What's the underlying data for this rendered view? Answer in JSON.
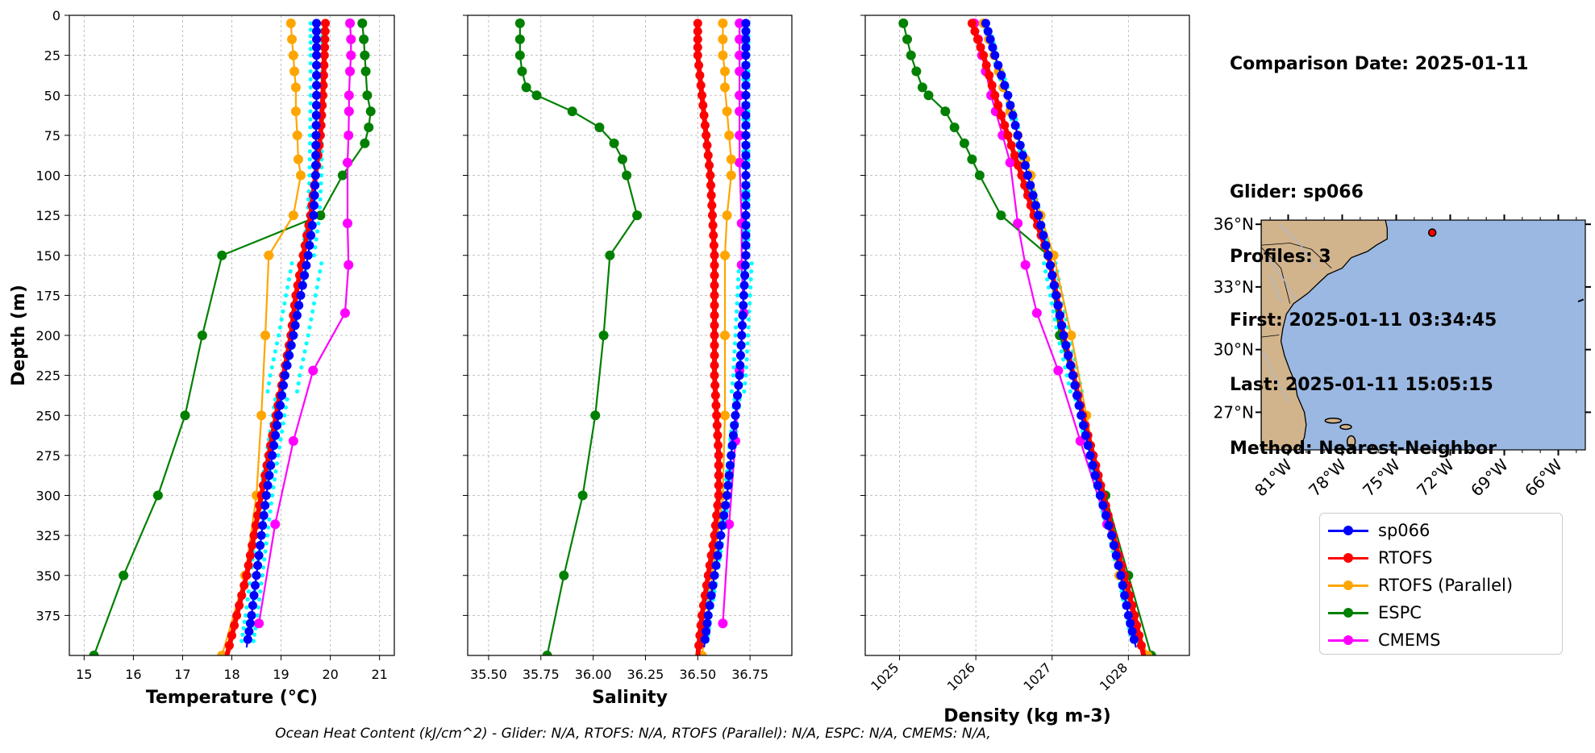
{
  "info": {
    "date_line": "Comparison Date: 2025-01-11",
    "glider_line": "Glider: sp066",
    "profiles_line": "Profiles: 3",
    "first_line": "First: 2025-01-11 03:34:45",
    "last_line": "Last: 2025-01-11 15:05:15",
    "method_line": "Method: Nearest-Neighbor"
  },
  "footer": "Ocean Heat Content (kJ/cm^2) - Glider: N/A,  RTOFS: N/A,  RTOFS (Parallel): N/A,  ESPC: N/A,  CMEMS: N/A,",
  "legend": [
    {
      "label": "sp066",
      "color": "#0000ff"
    },
    {
      "label": "RTOFS",
      "color": "#ff0000"
    },
    {
      "label": "RTOFS (Parallel)",
      "color": "#ffa500"
    },
    {
      "label": "ESPC",
      "color": "#008000"
    },
    {
      "label": "CMEMS",
      "color": "#ff00ff"
    }
  ],
  "colors": {
    "glider": "#0000ff",
    "rtofs": "#ff0000",
    "rtofs_parallel": "#ffa500",
    "espc": "#008000",
    "cmems": "#ff00ff",
    "glider_raw": "#00ffff",
    "land": "#d2b48c",
    "ocean": "#9ab8e2"
  },
  "chart_data": [
    {
      "type": "line",
      "xlabel": "Temperature (°C)",
      "ylabel": "Depth (m)",
      "xlim": [
        14.7,
        21.3
      ],
      "ylim": [
        400,
        0
      ],
      "xticks": [
        15,
        16,
        17,
        18,
        19,
        20,
        21
      ],
      "yticks": [
        0,
        25,
        50,
        75,
        100,
        125,
        150,
        175,
        200,
        225,
        250,
        275,
        300,
        325,
        350,
        375
      ],
      "grid": true,
      "series": [
        {
          "name": "sp066",
          "key": "glider",
          "depths": [
            5,
            25,
            50,
            75,
            100,
            125,
            150,
            175,
            200,
            225,
            250,
            275,
            300,
            325,
            350,
            375,
            395
          ],
          "values": [
            19.72,
            19.72,
            19.72,
            19.71,
            19.7,
            19.66,
            19.55,
            19.4,
            19.25,
            19.08,
            18.95,
            18.82,
            18.7,
            18.6,
            18.5,
            18.4,
            18.3
          ]
        },
        {
          "name": "RTOFS",
          "key": "rtofs",
          "depths": [
            5,
            25,
            50,
            75,
            100,
            125,
            150,
            175,
            200,
            225,
            250,
            275,
            300,
            325,
            350,
            375,
            400
          ],
          "values": [
            19.9,
            19.88,
            19.85,
            19.8,
            19.7,
            19.6,
            19.45,
            19.3,
            19.2,
            19.05,
            18.9,
            18.75,
            18.6,
            18.45,
            18.3,
            18.1,
            17.9
          ]
        },
        {
          "name": "RTOFS (Parallel)",
          "key": "rtofs_parallel",
          "depths": [
            5,
            15,
            25,
            35,
            45,
            60,
            75,
            90,
            100,
            125,
            150,
            200,
            250,
            300,
            350,
            400
          ],
          "values": [
            19.2,
            19.22,
            19.25,
            19.27,
            19.3,
            19.3,
            19.33,
            19.35,
            19.4,
            19.25,
            18.75,
            18.68,
            18.6,
            18.5,
            18.27,
            17.8
          ]
        },
        {
          "name": "ESPC",
          "key": "espc",
          "depths": [
            5,
            15,
            25,
            35,
            50,
            60,
            70,
            80,
            100,
            125,
            150,
            200,
            250,
            300,
            350,
            400
          ],
          "values": [
            20.65,
            20.68,
            20.7,
            20.72,
            20.75,
            20.82,
            20.78,
            20.7,
            20.25,
            19.8,
            17.8,
            17.4,
            17.05,
            16.5,
            15.8,
            15.2
          ]
        },
        {
          "name": "CMEMS",
          "key": "cmems",
          "depths": [
            5,
            15,
            25,
            35,
            50,
            60,
            75,
            92,
            130,
            156,
            186,
            222,
            266,
            318,
            380
          ],
          "values": [
            20.4,
            20.42,
            20.42,
            20.4,
            20.38,
            20.38,
            20.37,
            20.35,
            20.35,
            20.37,
            20.3,
            19.65,
            19.25,
            18.88,
            18.55
          ]
        }
      ]
    },
    {
      "type": "line",
      "xlabel": "Salinity",
      "ylim": [
        400,
        0
      ],
      "xlim": [
        35.4,
        36.95
      ],
      "xticks": [
        35.5,
        35.75,
        36.0,
        36.25,
        36.5,
        36.75
      ],
      "xticklabels": [
        "35.50",
        "35.75",
        "36.00",
        "36.25",
        "36.50",
        "36.75"
      ],
      "grid": true,
      "series": [
        {
          "name": "sp066",
          "key": "glider",
          "depths": [
            5,
            25,
            50,
            75,
            100,
            125,
            150,
            175,
            200,
            225,
            250,
            275,
            300,
            325,
            350,
            375,
            395
          ],
          "values": [
            36.73,
            36.73,
            36.73,
            36.73,
            36.73,
            36.73,
            36.73,
            36.72,
            36.71,
            36.7,
            36.68,
            36.66,
            36.64,
            36.61,
            36.58,
            36.55,
            36.53
          ]
        },
        {
          "name": "RTOFS",
          "key": "rtofs",
          "depths": [
            5,
            25,
            50,
            75,
            100,
            125,
            150,
            175,
            200,
            225,
            250,
            275,
            300,
            325,
            350,
            375,
            400
          ],
          "values": [
            36.5,
            36.5,
            36.52,
            36.54,
            36.56,
            36.57,
            36.58,
            36.58,
            36.58,
            36.58,
            36.59,
            36.6,
            36.6,
            36.58,
            36.55,
            36.52,
            36.5
          ]
        },
        {
          "name": "RTOFS (Parallel)",
          "key": "rtofs_parallel",
          "depths": [
            5,
            15,
            25,
            35,
            45,
            60,
            75,
            90,
            100,
            125,
            150,
            200,
            250,
            300,
            350,
            400
          ],
          "values": [
            36.62,
            36.62,
            36.62,
            36.63,
            36.63,
            36.64,
            36.65,
            36.66,
            36.66,
            36.64,
            36.63,
            36.63,
            36.63,
            36.62,
            36.57,
            36.52
          ]
        },
        {
          "name": "ESPC",
          "key": "espc",
          "depths": [
            5,
            15,
            25,
            35,
            45,
            50,
            60,
            70,
            80,
            90,
            100,
            125,
            150,
            200,
            250,
            300,
            350,
            400
          ],
          "values": [
            35.65,
            35.65,
            35.65,
            35.66,
            35.68,
            35.73,
            35.9,
            36.03,
            36.1,
            36.14,
            36.16,
            36.21,
            36.08,
            36.05,
            36.01,
            35.95,
            35.86,
            35.78
          ]
        },
        {
          "name": "CMEMS",
          "key": "cmems",
          "depths": [
            5,
            15,
            25,
            35,
            50,
            60,
            75,
            92,
            130,
            156,
            186,
            222,
            266,
            318,
            380
          ],
          "values": [
            36.7,
            36.7,
            36.7,
            36.7,
            36.7,
            36.7,
            36.7,
            36.7,
            36.71,
            36.71,
            36.72,
            36.7,
            36.68,
            36.65,
            36.62
          ]
        }
      ]
    },
    {
      "type": "line",
      "xlabel": "Density (kg m-3)",
      "ylim": [
        400,
        0
      ],
      "xlim": [
        1024.55,
        1028.8
      ],
      "xticks": [
        1025,
        1026,
        1027,
        1028
      ],
      "grid": true,
      "series": [
        {
          "name": "sp066",
          "key": "glider",
          "depths": [
            5,
            25,
            50,
            75,
            100,
            125,
            150,
            175,
            200,
            225,
            250,
            275,
            300,
            325,
            350,
            375,
            395
          ],
          "values": [
            1026.13,
            1026.25,
            1026.42,
            1026.55,
            1026.68,
            1026.82,
            1026.95,
            1027.05,
            1027.15,
            1027.27,
            1027.38,
            1027.5,
            1027.63,
            1027.78,
            1027.9,
            1028.0,
            1028.1
          ]
        },
        {
          "name": "RTOFS",
          "key": "rtofs",
          "depths": [
            5,
            25,
            50,
            75,
            100,
            125,
            150,
            175,
            200,
            225,
            250,
            275,
            300,
            325,
            350,
            375,
            400
          ],
          "values": [
            1025.95,
            1026.1,
            1026.25,
            1026.42,
            1026.6,
            1026.76,
            1026.95,
            1027.06,
            1027.15,
            1027.28,
            1027.4,
            1027.54,
            1027.67,
            1027.8,
            1027.95,
            1028.08,
            1028.2
          ]
        },
        {
          "name": "RTOFS (Parallel)",
          "key": "rtofs_parallel",
          "depths": [
            5,
            15,
            25,
            35,
            45,
            60,
            75,
            90,
            100,
            125,
            150,
            200,
            250,
            300,
            350,
            400
          ],
          "values": [
            1026.1,
            1026.17,
            1026.24,
            1026.3,
            1026.36,
            1026.45,
            1026.55,
            1026.65,
            1026.72,
            1026.85,
            1027.02,
            1027.25,
            1027.45,
            1027.65,
            1027.88,
            1028.25
          ]
        },
        {
          "name": "ESPC",
          "key": "espc",
          "depths": [
            5,
            15,
            25,
            35,
            45,
            50,
            60,
            70,
            80,
            90,
            100,
            125,
            150,
            200,
            250,
            300,
            350,
            400
          ],
          "values": [
            1025.05,
            1025.1,
            1025.15,
            1025.22,
            1025.3,
            1025.38,
            1025.6,
            1025.72,
            1025.85,
            1025.95,
            1026.05,
            1026.33,
            1026.95,
            1027.1,
            1027.42,
            1027.7,
            1028.0,
            1028.3
          ]
        },
        {
          "name": "CMEMS",
          "key": "cmems",
          "depths": [
            5,
            15,
            25,
            35,
            50,
            60,
            75,
            92,
            130,
            156,
            186,
            222,
            266,
            318,
            380
          ],
          "values": [
            1025.98,
            1026.03,
            1026.08,
            1026.13,
            1026.2,
            1026.26,
            1026.35,
            1026.45,
            1026.55,
            1026.65,
            1026.8,
            1027.08,
            1027.37,
            1027.72,
            1028.08
          ]
        }
      ]
    },
    {
      "type": "map",
      "lat_ticks": [
        "27°N",
        "30°N",
        "33°N",
        "36°N"
      ],
      "lat_values": [
        27,
        30,
        33,
        36
      ],
      "lon_ticks": [
        "81°W",
        "78°W",
        "75°W",
        "72°W",
        "69°W",
        "66°W"
      ],
      "lon_values": [
        -81,
        -78,
        -75,
        -72,
        -69,
        -66
      ],
      "extent": {
        "lon": [
          -82.5,
          -64.5
        ],
        "lat": [
          25.2,
          36.2
        ]
      },
      "glider_position": {
        "lon": -73.0,
        "lat": 35.6
      }
    }
  ]
}
